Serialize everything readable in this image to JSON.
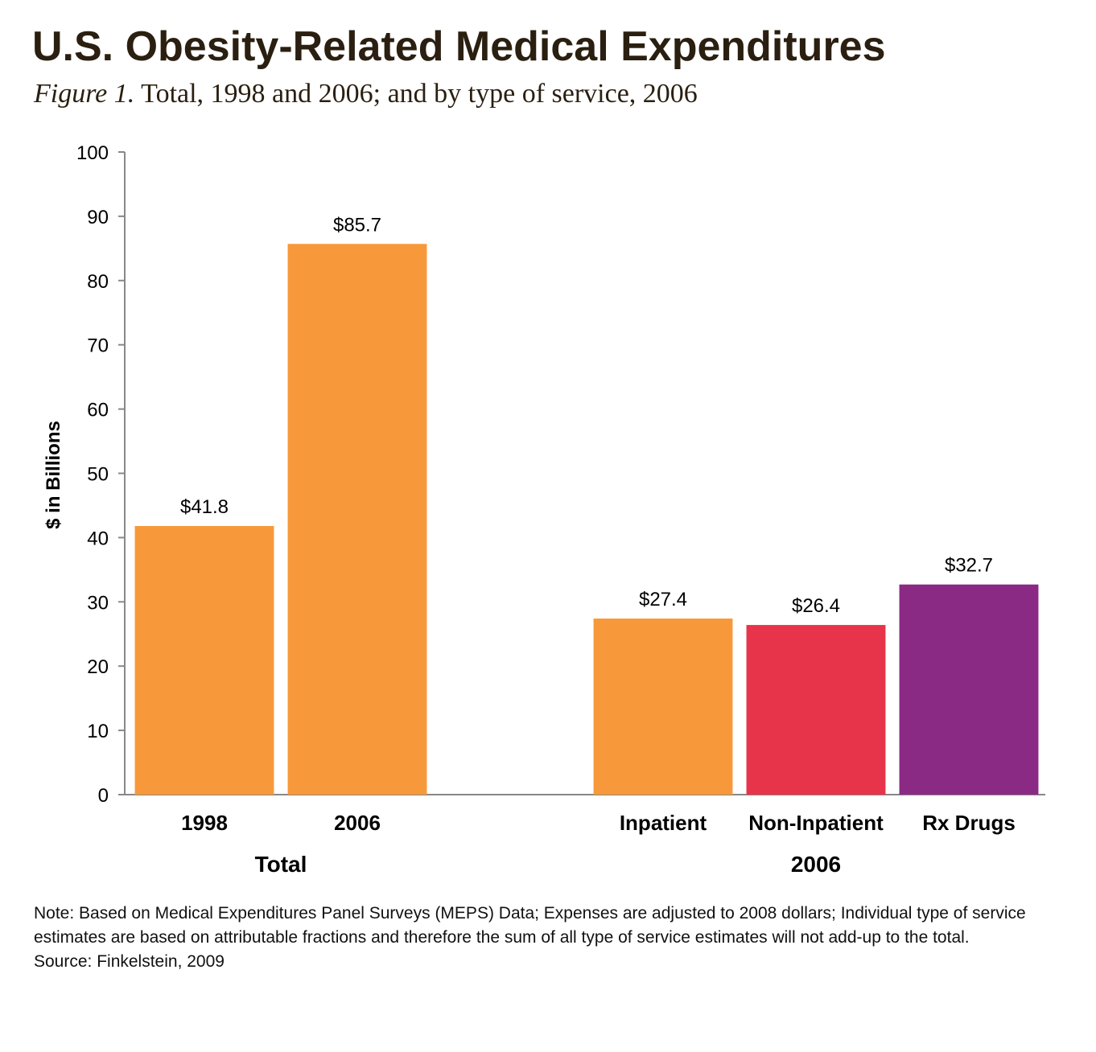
{
  "chart_data": {
    "type": "bar",
    "title": "U.S. Obesity-Related Medical Expenditures",
    "figure_label": "Figure 1.",
    "subtitle": "Total, 1998 and 2006; and by type of service, 2006",
    "y_label": "$ in Billions",
    "categories": [
      "1998",
      "2006",
      null,
      "Inpatient",
      "Non-Inpatient",
      "Rx Drugs"
    ],
    "values": [
      41.8,
      85.7,
      null,
      27.4,
      26.4,
      32.7
    ],
    "value_labels": [
      "$41.8",
      "$85.7",
      null,
      "$27.4",
      "$26.4",
      "$32.7"
    ],
    "colors": [
      "#f7993a",
      "#f7993a",
      null,
      "#f7993a",
      "#e8344a",
      "#8b2a85"
    ],
    "group_labels": [
      "Total",
      "2006"
    ],
    "ylim": [
      0,
      100
    ],
    "yticks": [
      0,
      10,
      20,
      30,
      40,
      50,
      60,
      70,
      80,
      90,
      100
    ],
    "grid": false,
    "note": "Note: Based on Medical Expenditures Panel Surveys (MEPS) Data; Expenses are adjusted to 2008 dollars; Individual type of service estimates are based on attributable fractions and therefore the sum of all type of service estimates will not add-up to the total.",
    "source": "Source: Finkelstein, 2009"
  }
}
